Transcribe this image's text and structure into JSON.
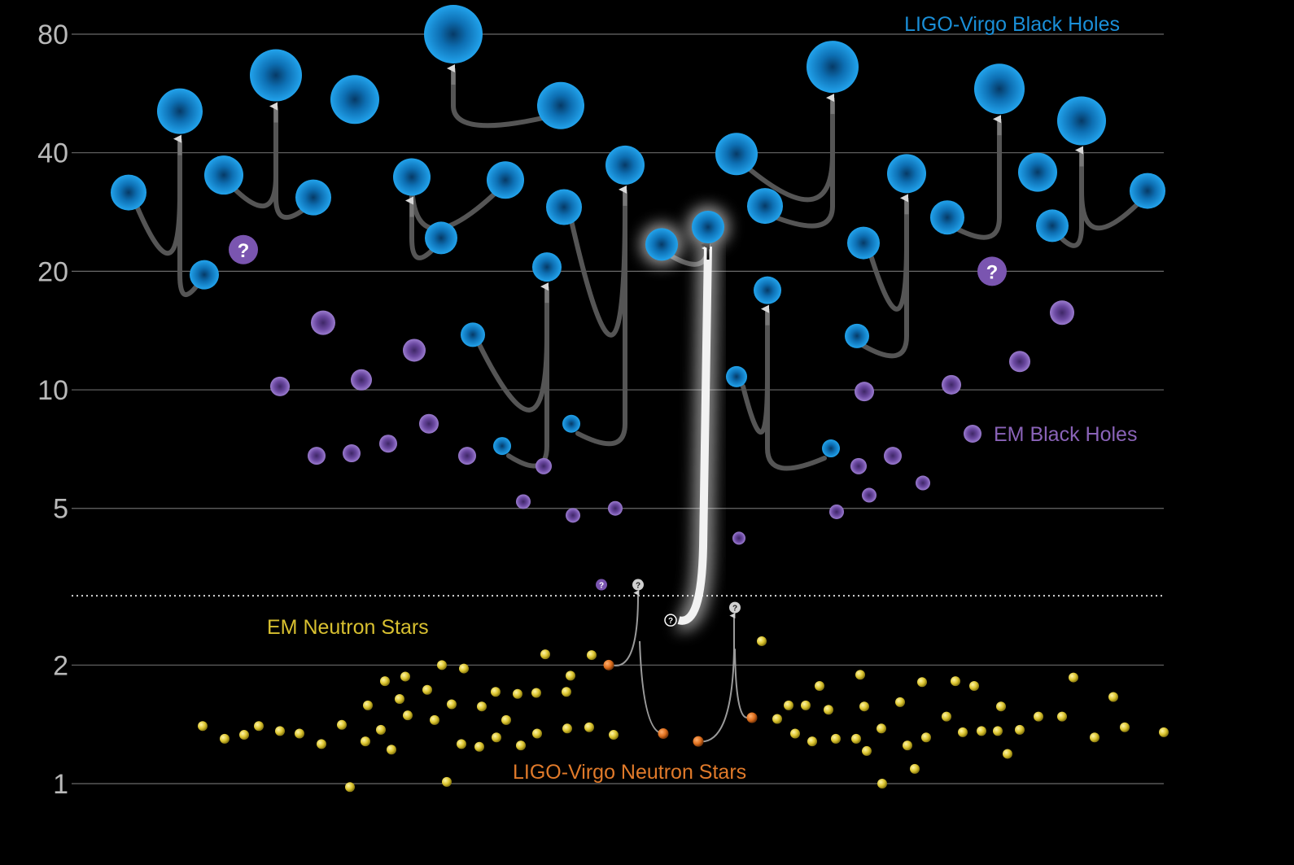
{
  "chart_data": {
    "type": "scatter",
    "y_scale": "log",
    "ylim": [
      0.9,
      90
    ],
    "y_ticks": [
      1,
      2,
      5,
      10,
      20,
      40,
      80
    ],
    "y_tick_labels": [
      "1",
      "2",
      "5",
      "10",
      "20",
      "40",
      "80"
    ],
    "grid": true,
    "divider_y": 3.0,
    "colors": {
      "ligo_bh": "#1a8fd8",
      "em_bh": "#8a63b8",
      "em_ns": "#e8d84a",
      "ligo_ns": "#e07a2a",
      "grid": "#6a6a6a"
    },
    "legend": [
      {
        "key": "ligo_bh",
        "label": "LIGO-Virgo Black Holes",
        "color": "#1a8fd8"
      },
      {
        "key": "em_bh",
        "label": "EM Black Holes",
        "color": "#8a63b8"
      },
      {
        "key": "em_ns",
        "label": "EM Neutron Stars",
        "color": "#d8c030"
      },
      {
        "key": "ligo_ns",
        "label": "LIGO-Virgo Neutron Stars",
        "color": "#e07a2a"
      }
    ],
    "ligo_bh": [
      {
        "x": 1,
        "y": 31.7
      },
      {
        "x": 2,
        "y": 51.0
      },
      {
        "x": 3,
        "y": 19.6
      },
      {
        "x": 4,
        "y": 35.1
      },
      {
        "x": 5,
        "y": 62.9
      },
      {
        "x": 6,
        "y": 30.8
      },
      {
        "x": 7,
        "y": 54.6
      },
      {
        "x": 8,
        "y": 34.7
      },
      {
        "x": 9,
        "y": 24.3
      },
      {
        "x": 10,
        "y": 80.0
      },
      {
        "x": 11,
        "y": 34.1
      },
      {
        "x": 12,
        "y": 52.7
      },
      {
        "x": 13,
        "y": 13.8
      },
      {
        "x": 14,
        "y": 7.2
      },
      {
        "x": 15,
        "y": 20.5
      },
      {
        "x": 16,
        "y": 29.1
      },
      {
        "x": 17,
        "y": 8.2
      },
      {
        "x": 18,
        "y": 37.2
      },
      {
        "x": 19,
        "y": 23.4
      },
      {
        "x": 20,
        "y": 25.9
      },
      {
        "x": 21,
        "y": 10.8
      },
      {
        "x": 22,
        "y": 39.7
      },
      {
        "x": 23,
        "y": 29.3
      },
      {
        "x": 24,
        "y": 17.9
      },
      {
        "x": 25,
        "y": 66.1
      },
      {
        "x": 26,
        "y": 7.1
      },
      {
        "x": 27,
        "y": 23.6
      },
      {
        "x": 28,
        "y": 13.7
      },
      {
        "x": 29,
        "y": 35.4
      },
      {
        "x": 30,
        "y": 27.4
      },
      {
        "x": 31,
        "y": 58.1
      },
      {
        "x": 32,
        "y": 35.7
      },
      {
        "x": 33,
        "y": 26.1
      },
      {
        "x": 34,
        "y": 48.2
      },
      {
        "x": 35,
        "y": 32.0
      }
    ],
    "ligo_bh_mergers": [
      {
        "parents": [
          1,
          3
        ],
        "child": 2
      },
      {
        "parents": [
          4,
          6
        ],
        "child": 5
      },
      {
        "parents": [
          9,
          11
        ],
        "child": 8
      },
      {
        "parents": [
          10,
          12
        ],
        "child": 10
      },
      {
        "parents": [
          13,
          14
        ],
        "child": 15
      },
      {
        "parents": [
          16,
          17
        ],
        "child": 18
      },
      {
        "parents": [
          19,
          20
        ],
        "child": 20
      },
      {
        "parents": [
          21,
          26
        ],
        "child": 24
      },
      {
        "parents": [
          22,
          23
        ],
        "child": 25
      },
      {
        "parents": [
          27,
          28
        ],
        "child": 29
      },
      {
        "parents": [
          30
        ],
        "child": 31
      },
      {
        "parents": [
          33,
          35
        ],
        "child": 34
      }
    ],
    "em_bh": [
      {
        "x": 1,
        "y": 10.2
      },
      {
        "x": 2,
        "y": 6.8
      },
      {
        "x": 3,
        "y": 14.8
      },
      {
        "x": 4,
        "y": 6.9
      },
      {
        "x": 5,
        "y": 10.6
      },
      {
        "x": 6,
        "y": 7.3
      },
      {
        "x": 7,
        "y": 12.6
      },
      {
        "x": 8,
        "y": 8.2
      },
      {
        "x": 9,
        "y": 6.8
      },
      {
        "x": 10,
        "y": 5.2
      },
      {
        "x": 11,
        "y": 6.4
      },
      {
        "x": 12,
        "y": 4.8
      },
      {
        "x": 13,
        "y": 5.0
      },
      {
        "x": 14,
        "y": 4.2
      },
      {
        "x": 15,
        "y": 4.9
      },
      {
        "x": 16,
        "y": 6.4
      },
      {
        "x": 17,
        "y": 9.9
      },
      {
        "x": 18,
        "y": 5.4
      },
      {
        "x": 19,
        "y": 6.8
      },
      {
        "x": 20,
        "y": 5.8
      },
      {
        "x": 21,
        "y": 10.3
      },
      {
        "x": 22,
        "y": 11.8
      },
      {
        "x": 23,
        "y": 15.7
      }
    ],
    "em_bh_unknown": [
      {
        "x": 1,
        "y": 22.7,
        "label": "?"
      },
      {
        "x": 2,
        "y": 20.0,
        "label": "?"
      },
      {
        "x": 3,
        "y": 3.2,
        "label": "?"
      }
    ],
    "em_ns": [
      {
        "x": 1,
        "y": 1.4
      },
      {
        "x": 2,
        "y": 1.3
      },
      {
        "x": 3,
        "y": 1.33
      },
      {
        "x": 4,
        "y": 1.4
      },
      {
        "x": 5,
        "y": 1.36
      },
      {
        "x": 6,
        "y": 1.34
      },
      {
        "x": 7,
        "y": 1.26
      },
      {
        "x": 8,
        "y": 1.41
      },
      {
        "x": 9,
        "y": 0.98
      },
      {
        "x": 10,
        "y": 1.28
      },
      {
        "x": 11,
        "y": 1.58
      },
      {
        "x": 12,
        "y": 1.37
      },
      {
        "x": 13,
        "y": 1.82
      },
      {
        "x": 14,
        "y": 1.22
      },
      {
        "x": 15,
        "y": 1.64
      },
      {
        "x": 16,
        "y": 1.87
      },
      {
        "x": 17,
        "y": 1.49
      },
      {
        "x": 18,
        "y": 1.73
      },
      {
        "x": 19,
        "y": 1.45
      },
      {
        "x": 20,
        "y": 2.0
      },
      {
        "x": 21,
        "y": 1.01
      },
      {
        "x": 22,
        "y": 1.59
      },
      {
        "x": 23,
        "y": 1.26
      },
      {
        "x": 24,
        "y": 1.96
      },
      {
        "x": 25,
        "y": 1.24
      },
      {
        "x": 26,
        "y": 1.31
      },
      {
        "x": 27,
        "y": 1.57
      },
      {
        "x": 28,
        "y": 1.45
      },
      {
        "x": 29,
        "y": 1.71
      },
      {
        "x": 30,
        "y": 1.69
      },
      {
        "x": 31,
        "y": 1.25
      },
      {
        "x": 32,
        "y": 1.7
      },
      {
        "x": 33,
        "y": 1.34
      },
      {
        "x": 34,
        "y": 2.13
      },
      {
        "x": 35,
        "y": 1.38
      },
      {
        "x": 36,
        "y": 1.71
      },
      {
        "x": 37,
        "y": 1.88
      },
      {
        "x": 38,
        "y": 1.39
      },
      {
        "x": 39,
        "y": 2.12
      },
      {
        "x": 40,
        "y": 1.33
      },
      {
        "x": 41,
        "y": 2.3
      },
      {
        "x": 42,
        "y": 1.46
      },
      {
        "x": 43,
        "y": 1.58
      },
      {
        "x": 44,
        "y": 1.34
      },
      {
        "x": 45,
        "y": 1.58
      },
      {
        "x": 46,
        "y": 1.28
      },
      {
        "x": 47,
        "y": 1.77
      },
      {
        "x": 48,
        "y": 1.54
      },
      {
        "x": 49,
        "y": 1.3
      },
      {
        "x": 50,
        "y": 1.89
      },
      {
        "x": 51,
        "y": 1.57
      },
      {
        "x": 52,
        "y": 1.3
      },
      {
        "x": 53,
        "y": 1.21
      },
      {
        "x": 54,
        "y": 1.38
      },
      {
        "x": 55,
        "y": 1.0
      },
      {
        "x": 56,
        "y": 1.61
      },
      {
        "x": 57,
        "y": 1.25
      },
      {
        "x": 58,
        "y": 1.09
      },
      {
        "x": 59,
        "y": 1.31
      },
      {
        "x": 60,
        "y": 1.81
      },
      {
        "x": 61,
        "y": 1.48
      },
      {
        "x": 62,
        "y": 1.82
      },
      {
        "x": 63,
        "y": 1.35
      },
      {
        "x": 64,
        "y": 1.77
      },
      {
        "x": 65,
        "y": 1.36
      },
      {
        "x": 66,
        "y": 1.36
      },
      {
        "x": 67,
        "y": 1.57
      },
      {
        "x": 68,
        "y": 1.19
      },
      {
        "x": 69,
        "y": 1.37
      },
      {
        "x": 70,
        "y": 1.48
      },
      {
        "x": 71,
        "y": 1.48
      },
      {
        "x": 72,
        "y": 1.86
      },
      {
        "x": 73,
        "y": 1.31
      },
      {
        "x": 74,
        "y": 1.66
      },
      {
        "x": 75,
        "y": 1.39
      },
      {
        "x": 76,
        "y": 1.35
      }
    ],
    "ligo_ns": [
      {
        "x": 1,
        "y": 2.0
      },
      {
        "x": 2,
        "y": 1.34
      },
      {
        "x": 3,
        "y": 1.28
      },
      {
        "x": 4,
        "y": 1.47
      }
    ],
    "ligo_ns_remnants": [
      {
        "x": 1,
        "y": 3.2,
        "label": "?"
      },
      {
        "x": 2,
        "y": 2.6,
        "label": "?"
      },
      {
        "x": 3,
        "y": 2.8,
        "label": "?"
      }
    ]
  }
}
